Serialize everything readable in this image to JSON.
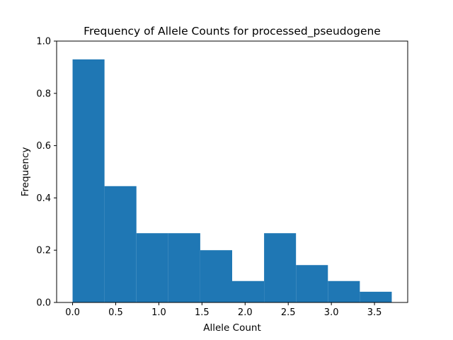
{
  "chart_data": {
    "type": "bar",
    "title": "Frequency of Allele Counts for processed_pseudogene",
    "xlabel": "Allele Count",
    "ylabel": "Frequency",
    "xlim": [
      -0.185,
      3.885
    ],
    "ylim": [
      0,
      1.0
    ],
    "bar_color": "#1f77b4",
    "bins": [
      {
        "x0": 0.0,
        "x1": 0.37,
        "value": 0.93
      },
      {
        "x0": 0.37,
        "x1": 0.74,
        "value": 0.445
      },
      {
        "x0": 0.74,
        "x1": 1.11,
        "value": 0.265
      },
      {
        "x0": 1.11,
        "x1": 1.48,
        "value": 0.265
      },
      {
        "x0": 1.48,
        "x1": 1.85,
        "value": 0.2
      },
      {
        "x0": 1.85,
        "x1": 2.22,
        "value": 0.082
      },
      {
        "x0": 2.22,
        "x1": 2.59,
        "value": 0.265
      },
      {
        "x0": 2.59,
        "x1": 2.96,
        "value": 0.143
      },
      {
        "x0": 2.96,
        "x1": 3.33,
        "value": 0.082
      },
      {
        "x0": 3.33,
        "x1": 3.7,
        "value": 0.041
      }
    ],
    "x_ticks": [
      {
        "value": 0.0,
        "label": "0.0"
      },
      {
        "value": 0.5,
        "label": "0.5"
      },
      {
        "value": 1.0,
        "label": "1.0"
      },
      {
        "value": 1.5,
        "label": "1.5"
      },
      {
        "value": 2.0,
        "label": "2.0"
      },
      {
        "value": 2.5,
        "label": "2.5"
      },
      {
        "value": 3.0,
        "label": "3.0"
      },
      {
        "value": 3.5,
        "label": "3.5"
      }
    ],
    "y_ticks": [
      {
        "value": 0.0,
        "label": "0.0"
      },
      {
        "value": 0.2,
        "label": "0.2"
      },
      {
        "value": 0.4,
        "label": "0.4"
      },
      {
        "value": 0.6,
        "label": "0.6"
      },
      {
        "value": 0.8,
        "label": "0.8"
      },
      {
        "value": 1.0,
        "label": "1.0"
      }
    ],
    "grid": false,
    "legend": "none"
  }
}
